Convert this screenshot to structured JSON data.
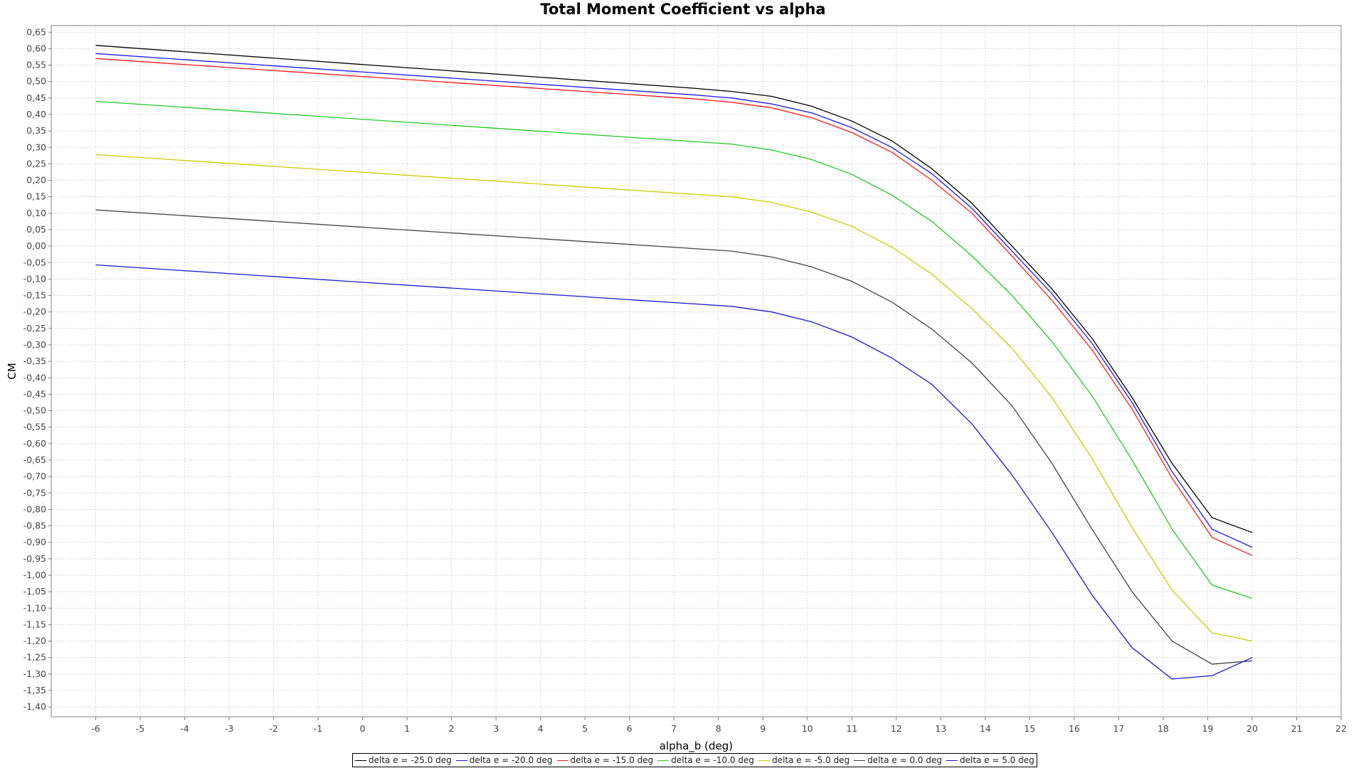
{
  "chart_data": {
    "type": "line",
    "title": "Total Moment Coefficient vs alpha",
    "xlabel": "alpha_b (deg)",
    "ylabel": "CM",
    "xlim": [
      -7,
      22
    ],
    "ylim": [
      -1.43,
      0.67
    ],
    "xticks": [
      -6,
      -5,
      -4,
      -3,
      -2,
      -1,
      0,
      1,
      2,
      3,
      4,
      5,
      6,
      7,
      8,
      9,
      10,
      11,
      12,
      13,
      14,
      15,
      16,
      17,
      18,
      19,
      20,
      21,
      22
    ],
    "yticks": [
      0.65,
      0.6,
      0.55,
      0.5,
      0.45,
      0.4,
      0.35,
      0.3,
      0.25,
      0.2,
      0.15,
      0.1,
      0.05,
      0.0,
      -0.05,
      -0.1,
      -0.15,
      -0.2,
      -0.25,
      -0.3,
      -0.35,
      -0.4,
      -0.45,
      -0.5,
      -0.55,
      -0.6,
      -0.65,
      -0.7,
      -0.75,
      -0.8,
      -0.85,
      -0.9,
      -0.95,
      -1.0,
      -1.05,
      -1.1,
      -1.15,
      -1.2,
      -1.25,
      -1.3,
      -1.35,
      -1.4
    ],
    "grid": true,
    "legend_position": "bottom",
    "x": [
      -6,
      7.4,
      8.3,
      9.2,
      10.1,
      11.0,
      11.9,
      12.8,
      13.7,
      14.6,
      15.5,
      16.4,
      17.3,
      18.2,
      19.1,
      20.0
    ],
    "series": [
      {
        "name": "delta e =  -25.0 deg",
        "color": "#000000",
        "values": [
          0.61,
          0.48,
          0.47,
          0.455,
          0.425,
          0.38,
          0.32,
          0.235,
          0.13,
          0.0,
          -0.13,
          -0.28,
          -0.46,
          -0.66,
          -0.825,
          -0.87
        ]
      },
      {
        "name": "delta e =  -20.0 deg",
        "color": "#1a1aff",
        "values": [
          0.585,
          0.46,
          0.45,
          0.432,
          0.405,
          0.36,
          0.3,
          0.22,
          0.115,
          -0.015,
          -0.145,
          -0.295,
          -0.475,
          -0.685,
          -0.86,
          -0.915
        ]
      },
      {
        "name": "delta e =  -15.0 deg",
        "color": "#ff1a1a",
        "values": [
          0.57,
          0.448,
          0.437,
          0.42,
          0.39,
          0.345,
          0.285,
          0.2,
          0.1,
          -0.03,
          -0.165,
          -0.315,
          -0.495,
          -0.705,
          -0.885,
          -0.94
        ]
      },
      {
        "name": "delta e =  -10.0 deg",
        "color": "#22cc22",
        "values": [
          0.44,
          0.318,
          0.31,
          0.292,
          0.263,
          0.218,
          0.155,
          0.075,
          -0.03,
          -0.15,
          -0.29,
          -0.455,
          -0.65,
          -0.86,
          -1.03,
          -1.07
        ]
      },
      {
        "name": "delta e =  -5.0 deg",
        "color": "#cccc00",
        "values": [
          0.278,
          0.158,
          0.15,
          0.133,
          0.103,
          0.06,
          -0.003,
          -0.085,
          -0.19,
          -0.31,
          -0.46,
          -0.645,
          -0.855,
          -1.045,
          -1.175,
          -1.2
        ]
      },
      {
        "name": "delta e =  0.0 deg",
        "color": "#444444",
        "values": [
          0.11,
          -0.007,
          -0.015,
          -0.033,
          -0.063,
          -0.107,
          -0.17,
          -0.252,
          -0.355,
          -0.485,
          -0.66,
          -0.86,
          -1.05,
          -1.2,
          -1.27,
          -1.26
        ]
      },
      {
        "name": "delta e =  5.0 deg",
        "color": "#1a1acc",
        "values": [
          -0.057,
          -0.175,
          -0.183,
          -0.2,
          -0.23,
          -0.276,
          -0.34,
          -0.42,
          -0.54,
          -0.695,
          -0.87,
          -1.06,
          -1.22,
          -1.315,
          -1.305,
          -1.25
        ]
      }
    ]
  }
}
